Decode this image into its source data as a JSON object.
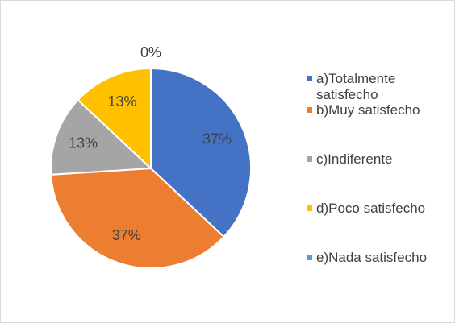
{
  "chart_data": {
    "type": "pie",
    "categories": [
      "a)Totalmente satisfecho",
      "b)Muy satisfecho",
      "c)Indiferente",
      "d)Poco satisfecho",
      "e)Nada satisfecho"
    ],
    "values": [
      37,
      37,
      13,
      13,
      0
    ],
    "value_labels": [
      "37%",
      "37%",
      "13%",
      "13%",
      "0%"
    ],
    "colors": [
      "#4472c4",
      "#ed7d31",
      "#a5a5a5",
      "#ffc000",
      "#5b9bd5"
    ],
    "legend": "right"
  }
}
